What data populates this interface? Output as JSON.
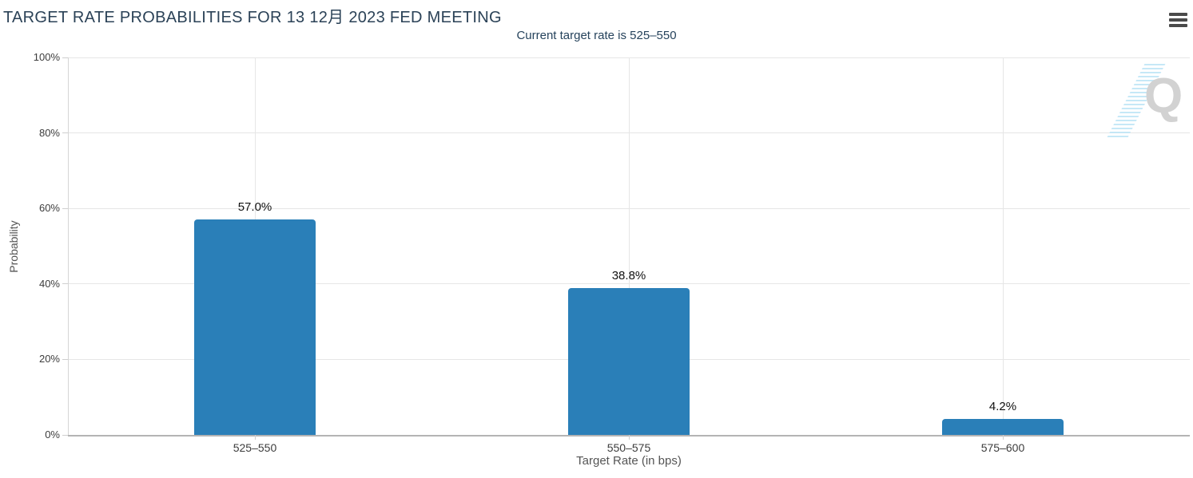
{
  "header": {
    "menu_icon": "hamburger-menu"
  },
  "chart_data": {
    "type": "bar",
    "title": "TARGET RATE PROBABILITIES FOR 13 12月 2023 FED MEETING",
    "subtitle": "Current target rate is 525–550",
    "categories": [
      "525–550",
      "550–575",
      "575–600"
    ],
    "values": [
      57.0,
      38.8,
      4.2
    ],
    "value_labels": [
      "57.0%",
      "38.8%",
      "4.2%"
    ],
    "xlabel": "Target Rate (in bps)",
    "ylabel": "Probability",
    "ylim": [
      0,
      100
    ],
    "yticks": [
      0,
      20,
      40,
      60,
      80,
      100
    ],
    "ytick_labels": [
      "0%",
      "20%",
      "40%",
      "60%",
      "80%",
      "100%"
    ],
    "grid": true,
    "legend": false
  },
  "colors": {
    "bar": "#2a7fb8",
    "grid": "#e6e6e6",
    "axis_line": "#b4b4b4",
    "title_text": "#2b4257",
    "watermark_blue": "#bfe5f6",
    "watermark_gray": "#d2d2d2"
  },
  "watermark": {
    "letter": "Q"
  }
}
